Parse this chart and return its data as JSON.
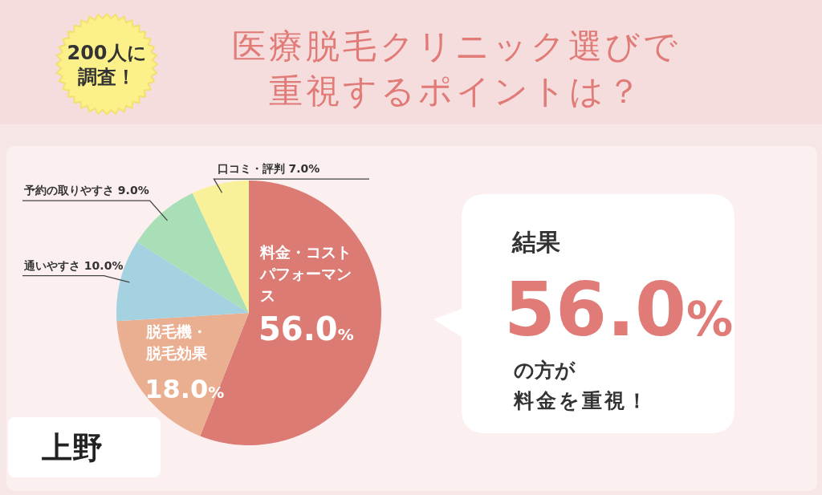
{
  "chart_data": {
    "type": "pie",
    "title": "医療脱毛クリニック選びで重視するポイントは？",
    "categories": [
      "料金・コストパフォーマンス",
      "脱毛機・脱毛効果",
      "通いやすさ",
      "予約の取りやすさ",
      "口コミ・評判"
    ],
    "values": [
      56,
      18,
      10,
      9,
      7
    ],
    "colors": [
      "#dc7b74",
      "#eaae90",
      "#a5d2e0",
      "#a8dfb6",
      "#f9f19a"
    ],
    "value_labels": [
      "56.0%",
      "18.0%",
      "10.0%",
      "9.0%",
      "7.0%"
    ],
    "annotations": [
      "200人に調査！",
      "上野",
      "結果",
      "56.0%",
      "の方が",
      "料金を重視！"
    ]
  }
}
